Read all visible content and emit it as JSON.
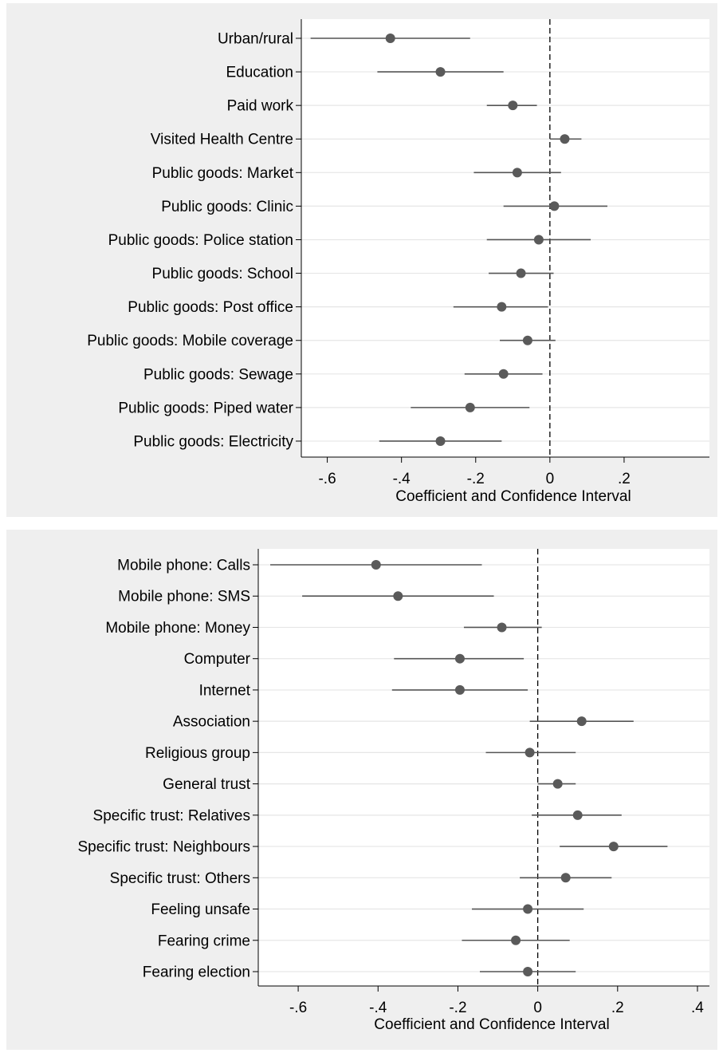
{
  "chart_data": [
    {
      "type": "scatter",
      "style": "coefficient-plot",
      "xlabel": "Coefficient and Confidence Interval",
      "xlim": [
        -0.67,
        0.43
      ],
      "xticks": [
        -0.6,
        -0.4,
        -0.2,
        0,
        0.2
      ],
      "xtick_labels": [
        "-.6",
        "-.4",
        "-.2",
        "0",
        ".2"
      ],
      "reference_line": 0,
      "grid": true,
      "categories": [
        "Urban/rural",
        "Education",
        "Paid work",
        "Visited Health Centre",
        "Public goods: Market",
        "Public goods: Clinic",
        "Public goods: Police station",
        "Public goods: School",
        "Public goods: Post office",
        "Public goods: Mobile coverage",
        "Public goods: Sewage",
        "Public goods: Piped water",
        "Public goods: Electricity"
      ],
      "estimates": [
        -0.43,
        -0.295,
        -0.1,
        0.04,
        -0.088,
        0.012,
        -0.03,
        -0.078,
        -0.13,
        -0.06,
        -0.125,
        -0.215,
        -0.295
      ],
      "ci_low": [
        -0.645,
        -0.465,
        -0.17,
        0,
        -0.205,
        -0.125,
        -0.17,
        -0.165,
        -0.26,
        -0.135,
        -0.23,
        -0.375,
        -0.46
      ],
      "ci_high": [
        -0.215,
        -0.125,
        -0.035,
        0.085,
        0.03,
        0.155,
        0.11,
        0.01,
        -0.005,
        0.015,
        -0.02,
        -0.055,
        -0.13
      ]
    },
    {
      "type": "scatter",
      "style": "coefficient-plot",
      "xlabel": "Coefficient and Confidence Interval",
      "xlim": [
        -0.7,
        0.43
      ],
      "xticks": [
        -0.6,
        -0.4,
        -0.2,
        0,
        0.2,
        0.4
      ],
      "xtick_labels": [
        "-.6",
        "-.4",
        "-.2",
        "0",
        ".2",
        ".4"
      ],
      "reference_line": 0,
      "grid": true,
      "categories": [
        "Mobile phone: Calls",
        "Mobile phone: SMS",
        "Mobile phone: Money",
        "Computer",
        "Internet",
        "Association",
        "Religious group",
        "General trust",
        "Specific trust: Relatives",
        "Specific trust: Neighbours",
        "Specific trust: Others",
        "Feeling unsafe",
        "Fearing crime",
        "Fearing election"
      ],
      "estimates": [
        -0.405,
        -0.35,
        -0.09,
        -0.195,
        -0.195,
        0.11,
        -0.02,
        0.05,
        0.1,
        0.19,
        0.07,
        -0.025,
        -0.055,
        -0.025
      ],
      "ci_low": [
        -0.67,
        -0.59,
        -0.185,
        -0.36,
        -0.365,
        -0.02,
        -0.13,
        0,
        -0.015,
        0.055,
        -0.045,
        -0.165,
        -0.19,
        -0.145
      ],
      "ci_high": [
        -0.14,
        -0.11,
        0.01,
        -0.035,
        -0.025,
        0.24,
        0.095,
        0.095,
        0.21,
        0.325,
        0.185,
        0.115,
        0.08,
        0.095
      ]
    }
  ]
}
